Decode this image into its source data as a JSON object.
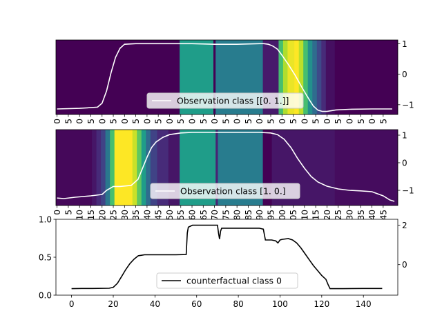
{
  "chart_data": [
    {
      "type": "heatmap",
      "panel": "top",
      "colormap": "viridis",
      "heatmap_segments": [
        {
          "x": [
            0,
            55
          ],
          "level": 0.0
        },
        {
          "x": [
            55,
            70
          ],
          "level": 0.55
        },
        {
          "x": [
            70,
            71
          ],
          "level": 0.0
        },
        {
          "x": [
            71,
            92
          ],
          "level": 0.42
        },
        {
          "x": [
            92,
            99
          ],
          "level": 0.07
        },
        {
          "x": [
            99,
            101
          ],
          "level": 0.7
        },
        {
          "x": [
            101,
            103
          ],
          "level": 0.88
        },
        {
          "x": [
            103,
            106
          ],
          "level": 0.97
        },
        {
          "x": [
            106,
            108
          ],
          "level": 1.0
        },
        {
          "x": [
            108,
            110
          ],
          "level": 0.9
        },
        {
          "x": [
            110,
            112
          ],
          "level": 0.7
        },
        {
          "x": [
            112,
            114
          ],
          "level": 0.5
        },
        {
          "x": [
            114,
            116
          ],
          "level": 0.35
        },
        {
          "x": [
            116,
            118
          ],
          "level": 0.22
        },
        {
          "x": [
            118,
            120
          ],
          "level": 0.12
        },
        {
          "x": [
            120,
            124
          ],
          "level": 0.04
        },
        {
          "x": [
            124,
            152
          ],
          "level": 0.0
        }
      ],
      "series": [
        {
          "name": "Observation class [[0. 1.]]",
          "color": "#ffffff",
          "x": [
            0,
            10,
            18,
            20,
            22,
            24,
            26,
            28,
            30,
            35,
            55,
            60,
            70,
            80,
            90,
            92,
            94,
            96,
            98,
            100,
            103,
            106,
            109,
            112,
            114,
            116,
            118,
            120,
            124,
            130,
            140,
            149
          ],
          "y": [
            -1.14,
            -1.12,
            -1.08,
            -0.95,
            -0.55,
            0.05,
            0.55,
            0.85,
            0.98,
            1.0,
            1.0,
            1.0,
            0.98,
            0.98,
            1.0,
            1.0,
            0.98,
            0.92,
            0.82,
            0.62,
            0.3,
            -0.05,
            -0.45,
            -0.82,
            -1.05,
            -1.18,
            -1.22,
            -1.22,
            -1.17,
            -1.15,
            -1.14,
            -1.14
          ]
        }
      ],
      "xlim": [
        -0.5,
        151.5
      ],
      "ylim": [
        -1.32,
        1.12
      ],
      "y_ticks": [
        1,
        0,
        -1
      ],
      "y_tick_labels": [
        "1",
        "0",
        "−1"
      ],
      "x_tick_labels": [
        "0",
        "5",
        "0",
        "5",
        "0",
        "5",
        "0",
        "5",
        "0",
        "5",
        "0",
        "5",
        "0",
        "5",
        "0",
        "5",
        "0",
        "5",
        "0",
        "5",
        "0",
        "5",
        "0",
        "5",
        "0",
        "5",
        "0",
        "5",
        "0",
        "5"
      ],
      "legend": "lower-center"
    },
    {
      "type": "heatmap",
      "panel": "middle",
      "colormap": "viridis",
      "heatmap_segments": [
        {
          "x": [
            0,
            16
          ],
          "level": 0.02
        },
        {
          "x": [
            16,
            18
          ],
          "level": 0.06
        },
        {
          "x": [
            18,
            20
          ],
          "level": 0.12
        },
        {
          "x": [
            20,
            22
          ],
          "level": 0.2
        },
        {
          "x": [
            22,
            24
          ],
          "level": 0.4
        },
        {
          "x": [
            24,
            26
          ],
          "level": 0.7
        },
        {
          "x": [
            26,
            34
          ],
          "level": 1.0
        },
        {
          "x": [
            34,
            36
          ],
          "level": 0.92
        },
        {
          "x": [
            36,
            38
          ],
          "level": 0.75
        },
        {
          "x": [
            38,
            40
          ],
          "level": 0.55
        },
        {
          "x": [
            40,
            42
          ],
          "level": 0.35
        },
        {
          "x": [
            42,
            45
          ],
          "level": 0.2
        },
        {
          "x": [
            45,
            50
          ],
          "level": 0.12
        },
        {
          "x": [
            50,
            55
          ],
          "level": 0.06
        },
        {
          "x": [
            55,
            71
          ],
          "level": 0.55
        },
        {
          "x": [
            71,
            72
          ],
          "level": 0.1
        },
        {
          "x": [
            72,
            92
          ],
          "level": 0.42
        },
        {
          "x": [
            92,
            96
          ],
          "level": 0.0
        },
        {
          "x": [
            96,
            124
          ],
          "level": 0.06
        },
        {
          "x": [
            124,
            152
          ],
          "level": 0.03
        }
      ],
      "series": [
        {
          "name": "Observation class [1. 0.]",
          "color": "#ffffff",
          "x": [
            0,
            3,
            8,
            15,
            20,
            22,
            25,
            28,
            33,
            36,
            38,
            40,
            42,
            44,
            47,
            50,
            55,
            60,
            70,
            80,
            90,
            95,
            98,
            101,
            104,
            107,
            110,
            113,
            116,
            120,
            125,
            130,
            135,
            140,
            145,
            148,
            150
          ],
          "y": [
            -1.28,
            -1.3,
            -1.25,
            -1.2,
            -1.15,
            -1.0,
            -0.86,
            -0.86,
            -0.82,
            -0.6,
            -0.2,
            0.2,
            0.55,
            0.75,
            0.92,
            1.02,
            1.08,
            1.1,
            1.1,
            1.1,
            1.1,
            1.08,
            1.02,
            0.85,
            0.55,
            0.15,
            -0.2,
            -0.5,
            -0.7,
            -0.85,
            -0.95,
            -1.0,
            -1.02,
            -1.05,
            -1.2,
            -1.35,
            -1.4
          ]
        }
      ],
      "xlim": [
        -0.5,
        151.5
      ],
      "ylim": [
        -1.55,
        1.2
      ],
      "y_ticks": [
        1,
        0,
        -1
      ],
      "y_tick_labels": [
        "1",
        "0",
        "−1"
      ],
      "x_tick_labels": [
        "0",
        "5",
        "10",
        "15",
        "20",
        "25",
        "30",
        "35",
        "40",
        "45",
        "50",
        "55",
        "60",
        "65",
        "70",
        "75",
        "80",
        "85",
        "90",
        "95",
        "100",
        "105",
        "110",
        "115",
        "120",
        "125",
        "130",
        "135",
        "140",
        "145"
      ],
      "legend": "lower-center"
    },
    {
      "type": "line",
      "panel": "bottom",
      "series": [
        {
          "name": "counterfactual class 0",
          "color": "#000000",
          "x": [
            0,
            5,
            10,
            18,
            20,
            22,
            24,
            26,
            28,
            30,
            32,
            35,
            40,
            45,
            50,
            55,
            55.5,
            56,
            58,
            62,
            66,
            70,
            70.5,
            71,
            71.5,
            72,
            80,
            90,
            92,
            93,
            96,
            98,
            99,
            100,
            101,
            104,
            106,
            108,
            110,
            112,
            114,
            116,
            118,
            120,
            122,
            123,
            124,
            126,
            130,
            140,
            149
          ],
          "y": [
            -1.22,
            -1.21,
            -1.21,
            -1.2,
            -1.15,
            -0.95,
            -0.6,
            -0.25,
            0.05,
            0.28,
            0.45,
            0.5,
            0.5,
            0.5,
            0.5,
            0.51,
            1.6,
            1.9,
            2.0,
            2.0,
            2.0,
            2.0,
            1.6,
            1.3,
            1.7,
            1.85,
            1.85,
            1.85,
            1.8,
            1.25,
            1.25,
            1.2,
            1.1,
            1.25,
            1.28,
            1.32,
            1.25,
            1.1,
            0.85,
            0.55,
            0.25,
            -0.05,
            -0.3,
            -0.55,
            -0.75,
            -1.0,
            -1.22,
            -1.22,
            -1.22,
            -1.21,
            -1.21
          ]
        }
      ],
      "xlim": [
        -7.5,
        156.5
      ],
      "ylim_right": [
        -1.55,
        2.3
      ],
      "ylim_left": [
        0.0,
        1.0
      ],
      "x_ticks": [
        0,
        20,
        40,
        60,
        80,
        100,
        120,
        140
      ],
      "x_tick_labels": [
        "0",
        "20",
        "40",
        "60",
        "80",
        "100",
        "120",
        "140"
      ],
      "y_left_ticks": [
        0.0,
        0.5,
        1.0
      ],
      "y_left_tick_labels": [
        "0.0",
        "0.5",
        "1.0"
      ],
      "y_right_ticks": [
        2,
        0
      ],
      "y_right_tick_labels": [
        "2",
        "0"
      ],
      "legend": "lower-center"
    }
  ]
}
